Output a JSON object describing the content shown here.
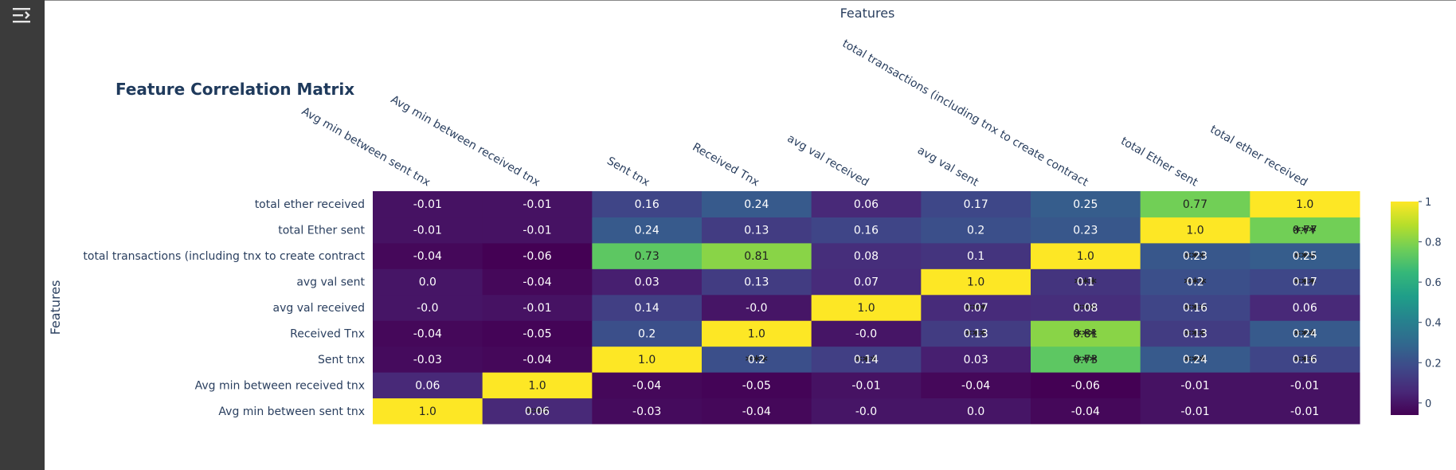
{
  "ui": {
    "sidebar_toggle_icon": "panel-expand-icon"
  },
  "chart_data": {
    "type": "heatmap",
    "title": "Feature Correlation Matrix",
    "xlabel": "Features",
    "ylabel": "Features",
    "x_categories": [
      "Avg min between sent tnx",
      "Avg min between received tnx",
      "Sent tnx",
      "Received Tnx",
      "avg val received",
      "avg val sent",
      "total transactions (including tnx to create contract",
      "total Ether sent",
      "total ether received"
    ],
    "y_categories": [
      "Avg min between sent tnx",
      "Avg min between received tnx",
      "Sent tnx",
      "Received Tnx",
      "avg val received",
      "avg val sent",
      "total transactions (including tnx to create contract",
      "total Ether sent",
      "total ether received"
    ],
    "values": [
      [
        1.0,
        0.06,
        -0.03,
        -0.04,
        -0.0,
        0.0,
        -0.04,
        -0.01,
        -0.01
      ],
      [
        0.06,
        1.0,
        -0.04,
        -0.05,
        -0.01,
        -0.04,
        -0.06,
        -0.01,
        -0.01
      ],
      [
        -0.03,
        -0.04,
        1.0,
        0.2,
        0.14,
        0.03,
        0.73,
        0.24,
        0.16
      ],
      [
        -0.04,
        -0.05,
        0.2,
        1.0,
        -0.0,
        0.13,
        0.81,
        0.13,
        0.24
      ],
      [
        -0.0,
        -0.01,
        0.14,
        -0.0,
        1.0,
        0.07,
        0.08,
        0.16,
        0.06
      ],
      [
        0.0,
        -0.04,
        0.03,
        0.13,
        0.07,
        1.0,
        0.1,
        0.2,
        0.17
      ],
      [
        -0.04,
        -0.06,
        0.73,
        0.81,
        0.08,
        0.1,
        1.0,
        0.23,
        0.25
      ],
      [
        -0.01,
        -0.01,
        0.24,
        0.13,
        0.16,
        0.2,
        0.23,
        1.0,
        0.77
      ],
      [
        -0.01,
        -0.01,
        0.16,
        0.24,
        0.06,
        0.17,
        0.25,
        0.77,
        1.0
      ]
    ],
    "significance_marker": "***",
    "significant_cells": [
      [
        0,
        1
      ],
      [
        2,
        3
      ],
      [
        2,
        4
      ],
      [
        2,
        6
      ],
      [
        2,
        7
      ],
      [
        2,
        8
      ],
      [
        3,
        5
      ],
      [
        3,
        6
      ],
      [
        3,
        7
      ],
      [
        3,
        8
      ],
      [
        4,
        5
      ],
      [
        4,
        6
      ],
      [
        4,
        7
      ],
      [
        5,
        6
      ],
      [
        5,
        7
      ],
      [
        5,
        8
      ],
      [
        6,
        7
      ],
      [
        6,
        8
      ],
      [
        7,
        8
      ]
    ],
    "colorscale": "viridis",
    "colorscale_stops": [
      "#440154",
      "#482878",
      "#3e4989",
      "#31688e",
      "#26828e",
      "#1f9e89",
      "#35b779",
      "#6ece58",
      "#b5de2b",
      "#fde725"
    ],
    "zlim": [
      -0.06,
      1.0
    ],
    "colorbar_ticks": [
      0,
      0.2,
      0.4,
      0.6,
      0.8,
      1
    ]
  }
}
